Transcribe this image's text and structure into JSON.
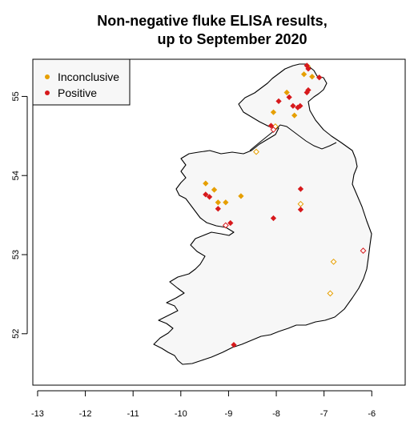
{
  "chart_data": {
    "type": "scatter",
    "title_lines": [
      "Non-negative fluke ELISA results,",
      "up to September 2020"
    ],
    "xlabel": "",
    "ylabel": "",
    "xlim": [
      -13.1,
      -5.3
    ],
    "ylim": [
      51.35,
      55.47
    ],
    "x_ticks": [
      -13,
      -12,
      -11,
      -10,
      -9,
      -8,
      -7,
      -6
    ],
    "y_ticks": [
      52,
      53,
      54,
      55
    ],
    "legend_position": "top-left",
    "colors": {
      "inconclusive": "#E69F00",
      "positive": "#D7191C"
    },
    "legend": [
      {
        "label": "Inconclusive",
        "color": "#E69F00"
      },
      {
        "label": "Positive",
        "color": "#D7191C"
      }
    ],
    "series": [
      {
        "name": "Inconclusive",
        "color": "#E69F00",
        "filled": [
          [
            -9.48,
            53.9
          ],
          [
            -9.3,
            53.82
          ],
          [
            -9.22,
            53.66
          ],
          [
            -9.06,
            53.66
          ],
          [
            -8.74,
            53.74
          ],
          [
            -8.06,
            54.8
          ],
          [
            -7.62,
            54.76
          ],
          [
            -7.78,
            55.05
          ],
          [
            -7.42,
            55.28
          ],
          [
            -7.34,
            55.38
          ],
          [
            -7.25,
            55.25
          ]
        ],
        "open": [
          [
            -8.42,
            54.3
          ],
          [
            -7.49,
            53.64
          ],
          [
            -6.8,
            52.91
          ],
          [
            -6.87,
            52.51
          ],
          [
            -8.02,
            54.62
          ]
        ]
      },
      {
        "name": "Positive",
        "color": "#D7191C",
        "filled": [
          [
            -9.48,
            53.76
          ],
          [
            -9.4,
            53.73
          ],
          [
            -9.22,
            53.58
          ],
          [
            -8.96,
            53.4
          ],
          [
            -8.06,
            53.46
          ],
          [
            -7.49,
            53.83
          ],
          [
            -7.49,
            53.57
          ],
          [
            -8.89,
            51.86
          ],
          [
            -8.11,
            54.63
          ],
          [
            -7.95,
            54.94
          ],
          [
            -7.73,
            54.99
          ],
          [
            -7.65,
            54.88
          ],
          [
            -7.55,
            54.86
          ],
          [
            -7.5,
            54.88
          ],
          [
            -7.36,
            55.05
          ],
          [
            -7.33,
            55.08
          ],
          [
            -7.36,
            55.39
          ],
          [
            -7.33,
            55.35
          ],
          [
            -7.1,
            55.24
          ]
        ],
        "open": [
          [
            -9.06,
            53.37
          ],
          [
            -6.18,
            53.05
          ],
          [
            -8.06,
            54.58
          ]
        ]
      }
    ]
  }
}
